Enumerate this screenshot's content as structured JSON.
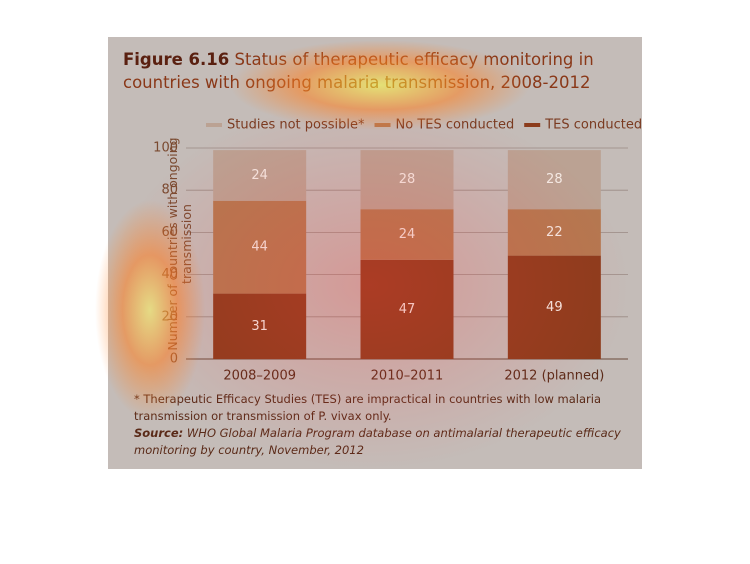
{
  "chart_data": {
    "type": "stacked_bar",
    "figure_label": "Figure 6.16",
    "title": "Status of therapeutic efficacy monitoring in countries with ongoing malaria transmission, 2008-2012",
    "y_label": "Number of countries with ongoing transmission",
    "categories": [
      "2008–2009",
      "2010–2011",
      "2012 (planned)"
    ],
    "series": [
      {
        "name": "TES conducted",
        "color": "#8c3c1c",
        "values": [
          31,
          47,
          49
        ]
      },
      {
        "name": "No TES conducted",
        "color": "#b47850",
        "values": [
          44,
          24,
          22
        ]
      },
      {
        "name": "Studies not possible*",
        "color": "#bba293",
        "values": [
          24,
          28,
          28
        ]
      }
    ],
    "ylim": [
      0,
      100
    ],
    "yticks": [
      0,
      20,
      40,
      60,
      80,
      100
    ],
    "grid": true,
    "footnote": "* Therapeutic Efficacy Studies (TES) are impractical in countries with low malaria transmission or transmission of P. vivax only.",
    "source_label": "Source:",
    "source": "WHO Global Malaria Program database on antimalarial therapeutic efficacy monitoring by country, November, 2012"
  }
}
